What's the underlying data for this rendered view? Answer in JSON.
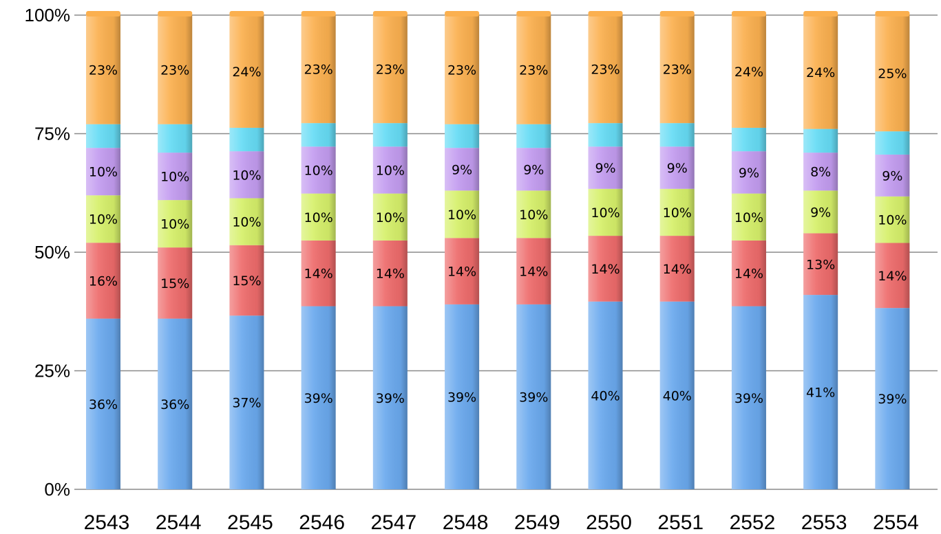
{
  "chart_data": {
    "type": "bar",
    "stacked": true,
    "normalized": true,
    "title": "",
    "xlabel": "",
    "ylabel": "",
    "ylim": [
      0,
      100
    ],
    "y_ticks": [
      "0%",
      "25%",
      "50%",
      "75%",
      "100%"
    ],
    "grid": true,
    "legend": "none",
    "categories": [
      "2543",
      "2544",
      "2545",
      "2546",
      "2547",
      "2548",
      "2549",
      "2550",
      "2551",
      "2552",
      "2553",
      "2554"
    ],
    "series": [
      {
        "color": "#6aa9ee",
        "values": [
          36,
          36,
          37,
          39,
          39,
          39,
          39,
          40,
          40,
          39,
          41,
          39
        ],
        "labels": [
          "36%",
          "36%",
          "37%",
          "39%",
          "39%",
          "39%",
          "39%",
          "40%",
          "40%",
          "39%",
          "41%",
          "39%"
        ]
      },
      {
        "color": "#ee6b6b",
        "values": [
          16,
          15,
          15,
          14,
          14,
          14,
          14,
          14,
          14,
          14,
          13,
          14
        ],
        "labels": [
          "16%",
          "15%",
          "15%",
          "14%",
          "14%",
          "14%",
          "14%",
          "14%",
          "14%",
          "14%",
          "13%",
          "14%"
        ]
      },
      {
        "color": "#d6f06a",
        "values": [
          10,
          10,
          10,
          10,
          10,
          10,
          10,
          10,
          10,
          10,
          9,
          10
        ],
        "labels": [
          "10%",
          "10%",
          "10%",
          "10%",
          "10%",
          "10%",
          "10%",
          "10%",
          "10%",
          "10%",
          "9%",
          "10%"
        ]
      },
      {
        "color": "#c39cf0",
        "values": [
          10,
          10,
          10,
          10,
          10,
          9,
          9,
          9,
          9,
          9,
          8,
          9
        ],
        "labels": [
          "10%",
          "10%",
          "10%",
          "10%",
          "10%",
          "9%",
          "9%",
          "9%",
          "9%",
          "9%",
          "8%",
          "9%"
        ]
      },
      {
        "color": "#66dcf5",
        "values": [
          5,
          6,
          5,
          5,
          5,
          5,
          5,
          5,
          5,
          5,
          5,
          5
        ],
        "labels": []
      },
      {
        "color": "#fbb04f",
        "values": [
          23,
          23,
          24,
          23,
          23,
          23,
          23,
          23,
          23,
          24,
          24,
          25
        ],
        "labels": [
          "23%",
          "23%",
          "24%",
          "23%",
          "23%",
          "23%",
          "23%",
          "23%",
          "23%",
          "24%",
          "24%",
          "25%"
        ]
      }
    ]
  }
}
